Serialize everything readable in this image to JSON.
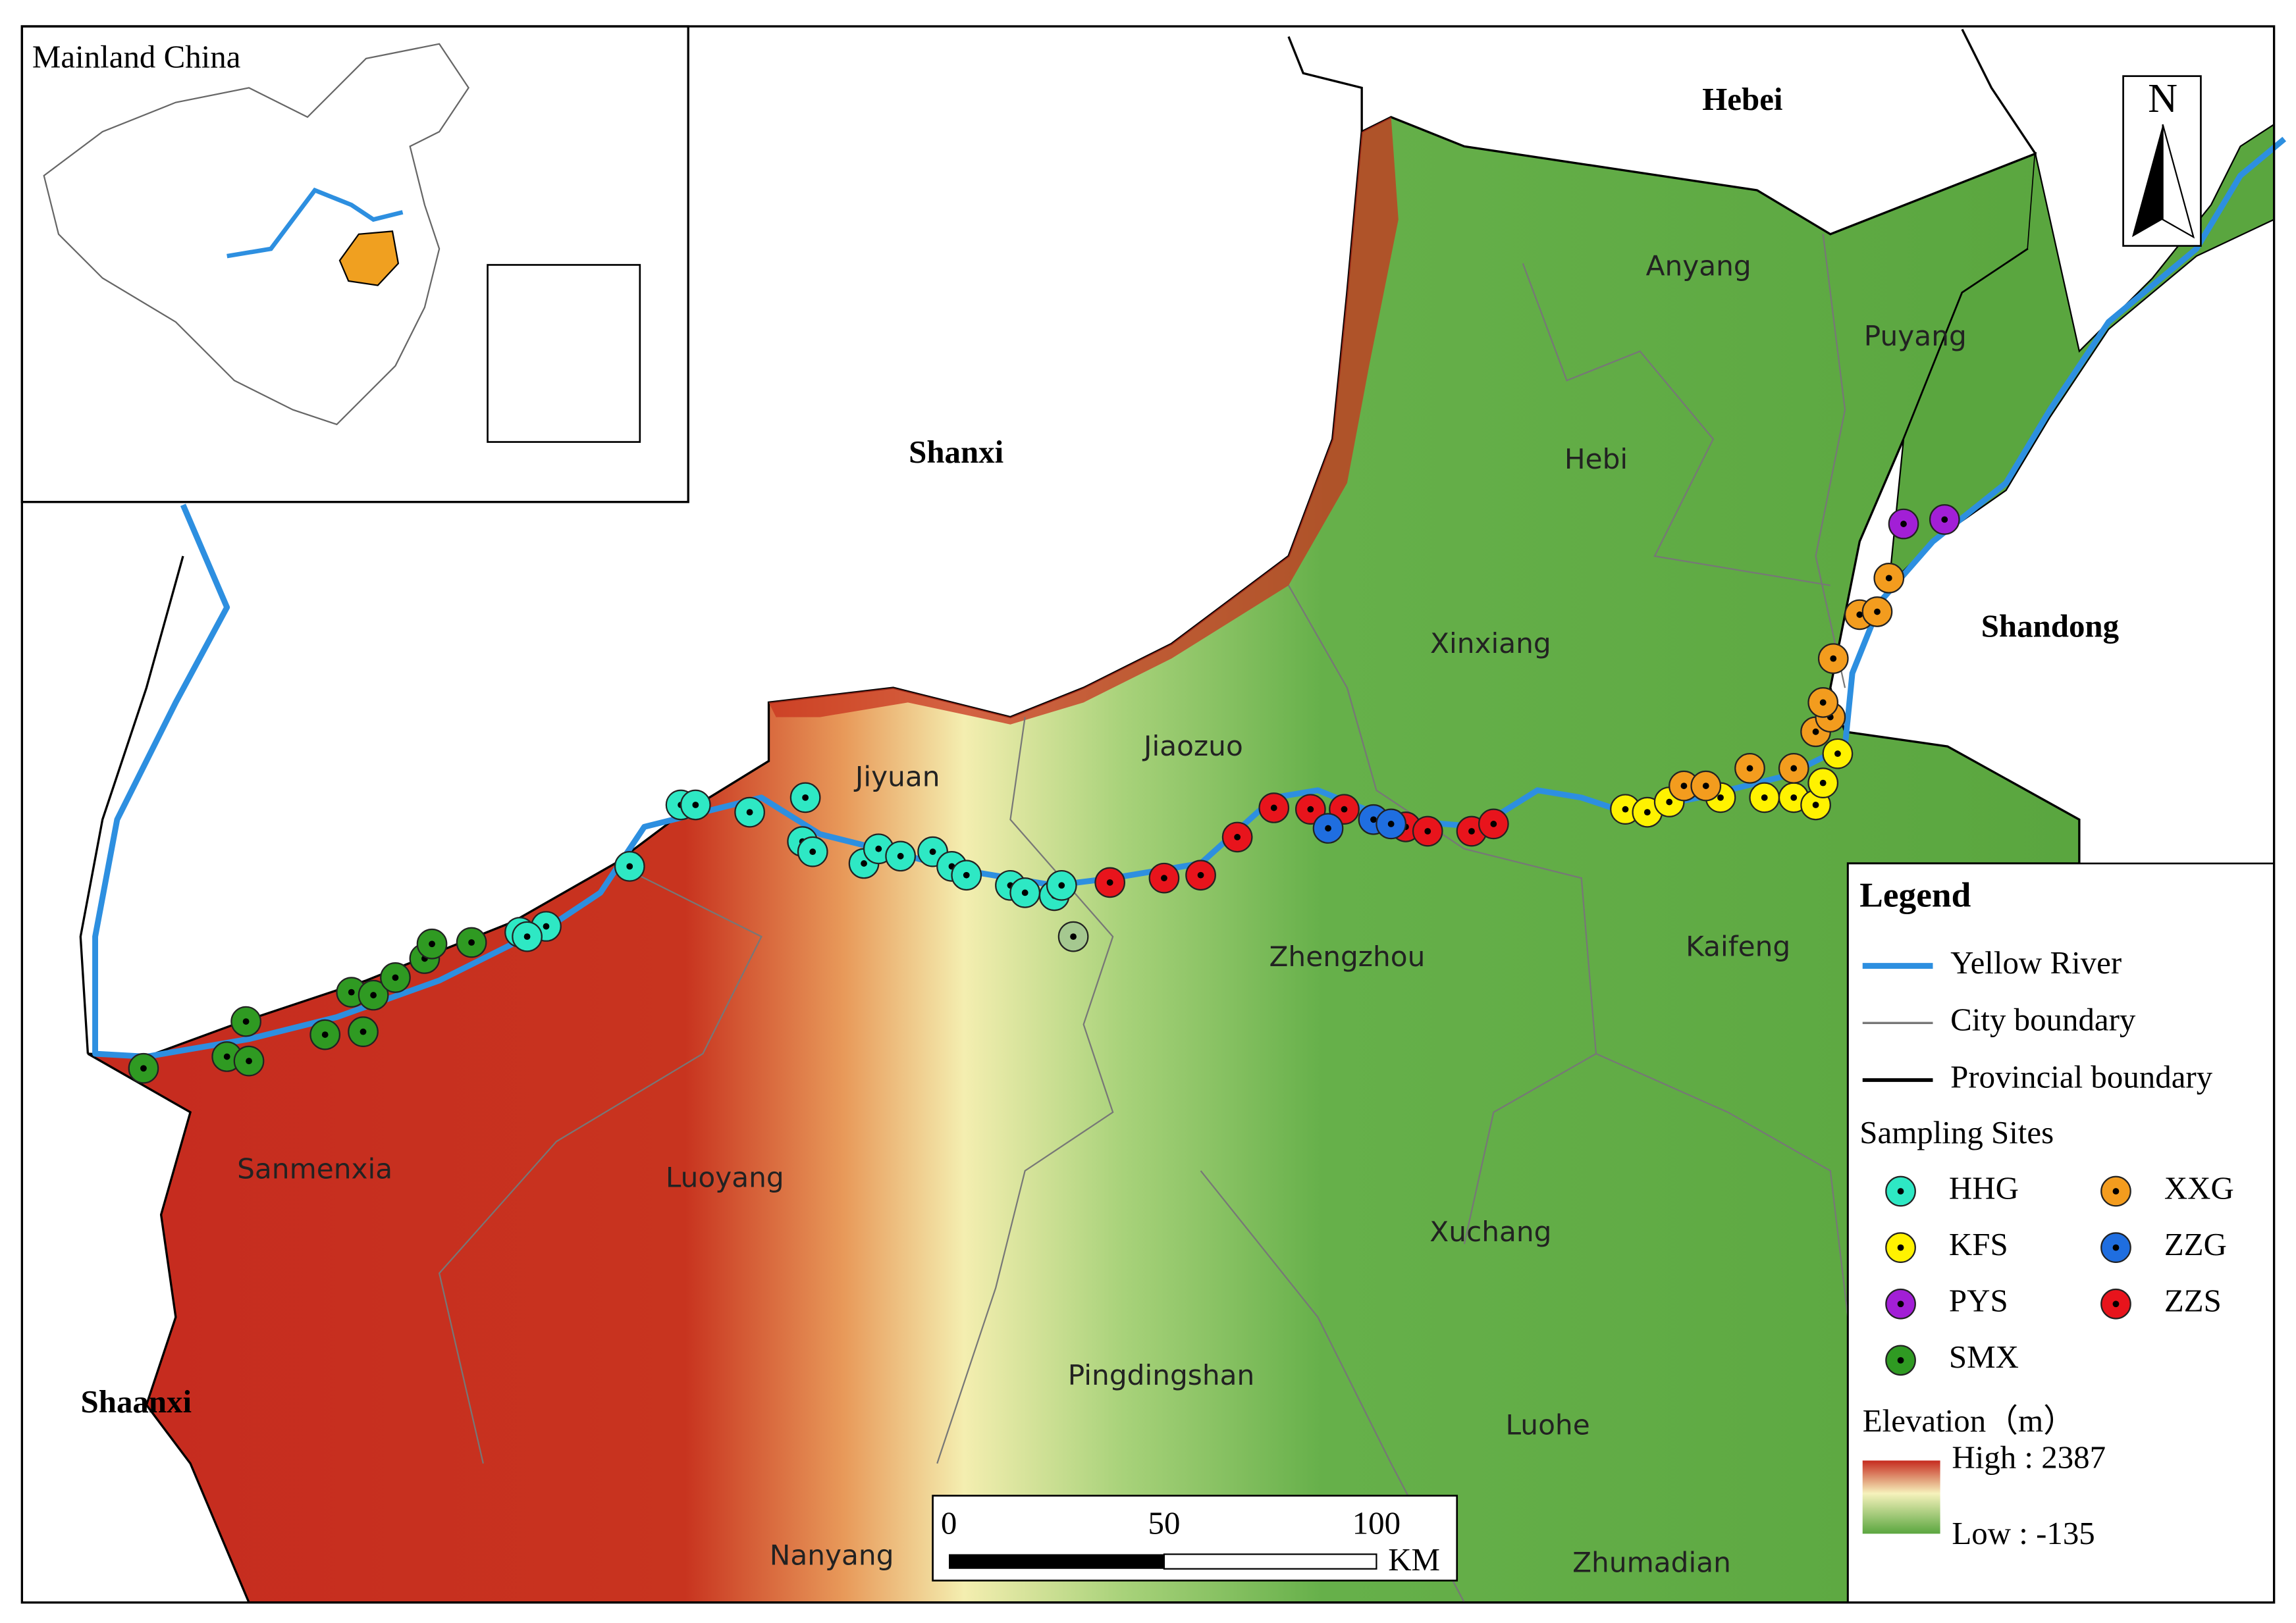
{
  "inset": {
    "title": "Mainland China"
  },
  "provinces": [
    "Hebei",
    "Shanxi",
    "Shandong",
    "Shaanxi"
  ],
  "cities": [
    "Anyang",
    "Puyang",
    "Hebi",
    "Xinxiang",
    "Jiaozuo",
    "Jiyuan",
    "Zhengzhou",
    "Kaifeng",
    "Sanmenxia",
    "Luoyang",
    "Xuchang",
    "Pingdingshan",
    "Luohe",
    "Nanyang",
    "Zhumadian"
  ],
  "north_arrow": "N",
  "scale_bar": {
    "ticks": [
      "0",
      "50",
      "100"
    ],
    "unit": "KM"
  },
  "legend": {
    "title": "Legend",
    "lines": [
      "Yellow River",
      "City boundary",
      "Provincial boundary"
    ],
    "sites_title": "Sampling Sites",
    "sites": [
      "HHG",
      "XXG",
      "KFS",
      "ZZG",
      "PYS",
      "ZZS",
      "SMX"
    ],
    "elevation_title": "Elevation（m）",
    "high": "High : 2387",
    "low": "Low : -135"
  }
}
